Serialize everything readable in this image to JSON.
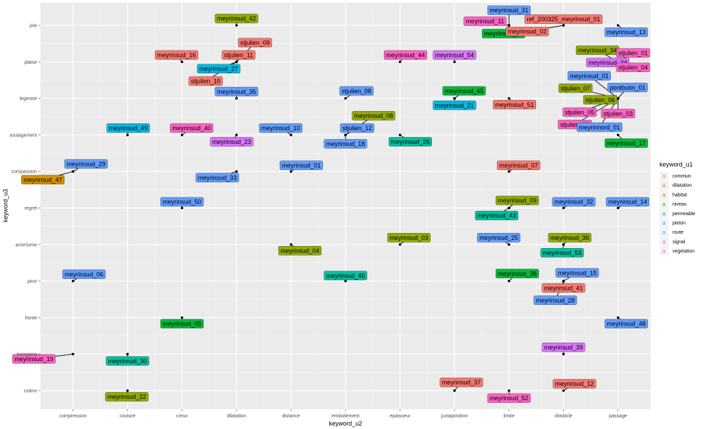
{
  "chart_data": {
    "type": "scatter",
    "title": "",
    "xlabel": "keyword_u2",
    "ylabel": "keyword_u3",
    "x_categories": [
      "compression",
      "couture",
      "creux",
      "dilatation",
      "distance",
      "emboitement",
      "epaisseur",
      "juxtaposition",
      "limite",
      "obstacle",
      "passage"
    ],
    "y_categories": [
      "colere",
      "tromperie",
      "honte",
      "peur",
      "amertume",
      "regret",
      "compassion",
      "soulagement",
      "legerete",
      "plaisir",
      "joie"
    ],
    "grid": true,
    "legend": {
      "title": "keyword_u1",
      "position": "right",
      "key_glyph": "a",
      "items": [
        {
          "name": "commun",
          "color": "#F8766D"
        },
        {
          "name": "dilatation",
          "color": "#D39200"
        },
        {
          "name": "habitat",
          "color": "#93AA00"
        },
        {
          "name": "niveau",
          "color": "#00BA38"
        },
        {
          "name": "permeable",
          "color": "#00C19F"
        },
        {
          "name": "pieton",
          "color": "#00B9E3"
        },
        {
          "name": "route",
          "color": "#619CFF"
        },
        {
          "name": "signal",
          "color": "#DB72FB"
        },
        {
          "name": "vegetation",
          "color": "#FF61C3"
        }
      ]
    },
    "points": [
      {
        "label": "meyrinsud_42",
        "x": "dilatation",
        "y": "joie",
        "group": "habitat"
      },
      {
        "label": "meyrinsud_31",
        "x": "limite",
        "y": "joie",
        "group": "route"
      },
      {
        "label": "meyrinsud_11",
        "x": "limite",
        "y": "joie",
        "group": "vegetation"
      },
      {
        "label": "meyrinsud_20",
        "x": "limite",
        "y": "joie",
        "group": "niveau"
      },
      {
        "label": "ref_200325_meyrinsud_01",
        "x": "obstacle",
        "y": "joie",
        "group": "commun"
      },
      {
        "label": "meyrinsud_02",
        "x": "obstacle",
        "y": "joie",
        "group": "commun"
      },
      {
        "label": "meyrinsud_13",
        "x": "passage",
        "y": "joie",
        "group": "route"
      },
      {
        "label": "meyrinsud_16",
        "x": "creux",
        "y": "plaisir",
        "group": "commun"
      },
      {
        "label": "stjulien_09",
        "x": "dilatation",
        "y": "plaisir",
        "group": "commun"
      },
      {
        "label": "stjulien_11",
        "x": "dilatation",
        "y": "plaisir",
        "group": "commun"
      },
      {
        "label": "meyrinsud_27",
        "x": "dilatation",
        "y": "plaisir",
        "group": "pieton"
      },
      {
        "label": "stjulien_10",
        "x": "dilatation",
        "y": "plaisir",
        "group": "commun"
      },
      {
        "label": "meyrinsud_44",
        "x": "epaisseur",
        "y": "plaisir",
        "group": "vegetation"
      },
      {
        "label": "meyrinsud_54",
        "x": "juxtaposition",
        "y": "plaisir",
        "group": "signal"
      },
      {
        "label": "meyrinsud_34",
        "x": "passage",
        "y": "plaisir",
        "group": "habitat"
      },
      {
        "label": "stjulien_01",
        "x": "passage",
        "y": "plaisir",
        "group": "vegetation"
      },
      {
        "label": "meyrinsud_24",
        "x": "passage",
        "y": "plaisir",
        "group": "signal"
      },
      {
        "label": "stjulien_04",
        "x": "passage",
        "y": "plaisir",
        "group": "vegetation"
      },
      {
        "label": "meyrinsud_35",
        "x": "dilatation",
        "y": "legerete",
        "group": "route"
      },
      {
        "label": "stjulien_08",
        "x": "emboitement",
        "y": "legerete",
        "group": "route"
      },
      {
        "label": "meyrinsud_45",
        "x": "juxtaposition",
        "y": "legerete",
        "group": "niveau"
      },
      {
        "label": "meyrinsud_21",
        "x": "juxtaposition",
        "y": "legerete",
        "group": "pieton"
      },
      {
        "label": "meyrinsud_51",
        "x": "limite",
        "y": "legerete",
        "group": "commun"
      },
      {
        "label": "meyrinsud_01",
        "x": "passage",
        "y": "legerete",
        "group": "route"
      },
      {
        "label": "pontbutin_01",
        "x": "passage",
        "y": "legerete",
        "group": "route"
      },
      {
        "label": "stjulien_07",
        "x": "passage",
        "y": "legerete",
        "group": "habitat"
      },
      {
        "label": "stjulien_06",
        "x": "passage",
        "y": "legerete",
        "group": "habitat"
      },
      {
        "label": "stjulien_05",
        "x": "passage",
        "y": "legerete",
        "group": "vegetation"
      },
      {
        "label": "stjulien_03",
        "x": "passage",
        "y": "legerete",
        "group": "vegetation"
      },
      {
        "label": "stjulien_02",
        "x": "passage",
        "y": "legerete",
        "group": "vegetation"
      },
      {
        "label": "meyrinnord_01",
        "x": "passage",
        "y": "legerete",
        "group": "route"
      },
      {
        "label": "meyrinsud_49",
        "x": "couture",
        "y": "soulagement",
        "group": "pieton"
      },
      {
        "label": "meyrinsud_40",
        "x": "creux",
        "y": "soulagement",
        "group": "vegetation"
      },
      {
        "label": "meyrinsud_23",
        "x": "dilatation",
        "y": "soulagement",
        "group": "signal"
      },
      {
        "label": "meyrinsud_10",
        "x": "distance",
        "y": "soulagement",
        "group": "route"
      },
      {
        "label": "meyrinsud_08",
        "x": "emboitement",
        "y": "soulagement",
        "group": "habitat"
      },
      {
        "label": "stjulien_12",
        "x": "emboitement",
        "y": "soulagement",
        "group": "route"
      },
      {
        "label": "meyrinsud_18",
        "x": "emboitement",
        "y": "soulagement",
        "group": "route"
      },
      {
        "label": "meyrinsud_26",
        "x": "epaisseur",
        "y": "soulagement",
        "group": "permeable"
      },
      {
        "label": "meyrinsud_17",
        "x": "passage",
        "y": "soulagement",
        "group": "niveau"
      },
      {
        "label": "meyrinsud_29",
        "x": "compression",
        "y": "compassion",
        "group": "route"
      },
      {
        "label": "meyrinsud_47",
        "x": "compression",
        "y": "compassion",
        "group": "dilatation"
      },
      {
        "label": "meyrinsud_33",
        "x": "dilatation",
        "y": "compassion",
        "group": "route"
      },
      {
        "label": "meyrinsud_01",
        "x": "distance",
        "y": "compassion",
        "group": "route"
      },
      {
        "label": "meyrinsud_07",
        "x": "limite",
        "y": "compassion",
        "group": "commun"
      },
      {
        "label": "meyrinsud_50",
        "x": "creux",
        "y": "regret",
        "group": "route"
      },
      {
        "label": "meyrinsud_09",
        "x": "limite",
        "y": "regret",
        "group": "habitat"
      },
      {
        "label": "meyrinsud_43",
        "x": "limite",
        "y": "regret",
        "group": "permeable"
      },
      {
        "label": "meyrinsud_32",
        "x": "obstacle",
        "y": "regret",
        "group": "route"
      },
      {
        "label": "meyrinsud_14",
        "x": "passage",
        "y": "regret",
        "group": "route"
      },
      {
        "label": "meyrinsud_04",
        "x": "distance",
        "y": "amertume",
        "group": "habitat"
      },
      {
        "label": "meyrinsud_03",
        "x": "epaisseur",
        "y": "amertume",
        "group": "habitat"
      },
      {
        "label": "meyrinsud_25",
        "x": "limite",
        "y": "amertume",
        "group": "route"
      },
      {
        "label": "meyrinsud_36",
        "x": "obstacle",
        "y": "amertume",
        "group": "habitat"
      },
      {
        "label": "meyrinsud_53",
        "x": "obstacle",
        "y": "amertume",
        "group": "permeable"
      },
      {
        "label": "meyrinsud_06",
        "x": "compression",
        "y": "peur",
        "group": "route"
      },
      {
        "label": "meyrinsud_46",
        "x": "emboitement",
        "y": "peur",
        "group": "permeable"
      },
      {
        "label": "meyrinsud_38",
        "x": "limite",
        "y": "peur",
        "group": "niveau"
      },
      {
        "label": "meyrinsud_15",
        "x": "obstacle",
        "y": "peur",
        "group": "route"
      },
      {
        "label": "meyrinsud_41",
        "x": "obstacle",
        "y": "peur",
        "group": "commun"
      },
      {
        "label": "meyrinsud_28",
        "x": "obstacle",
        "y": "peur",
        "group": "route"
      },
      {
        "label": "meyrinsud_05",
        "x": "creux",
        "y": "honte",
        "group": "niveau"
      },
      {
        "label": "meyrinsud_48",
        "x": "passage",
        "y": "honte",
        "group": "route"
      },
      {
        "label": "meyrinsud_19",
        "x": "compression",
        "y": "tromperie",
        "group": "vegetation"
      },
      {
        "label": "meyrinsud_30",
        "x": "couture",
        "y": "tromperie",
        "group": "permeable"
      },
      {
        "label": "meyrinsud_39",
        "x": "obstacle",
        "y": "tromperie",
        "group": "signal"
      },
      {
        "label": "meyrinsud_22",
        "x": "couture",
        "y": "colere",
        "group": "habitat"
      },
      {
        "label": "meyrinsud_37",
        "x": "juxtaposition",
        "y": "colere",
        "group": "commun"
      },
      {
        "label": "meyrinsud_52",
        "x": "limite",
        "y": "colere",
        "group": "vegetation"
      },
      {
        "label": "meyrinsud_12",
        "x": "obstacle",
        "y": "colere",
        "group": "commun"
      }
    ]
  }
}
